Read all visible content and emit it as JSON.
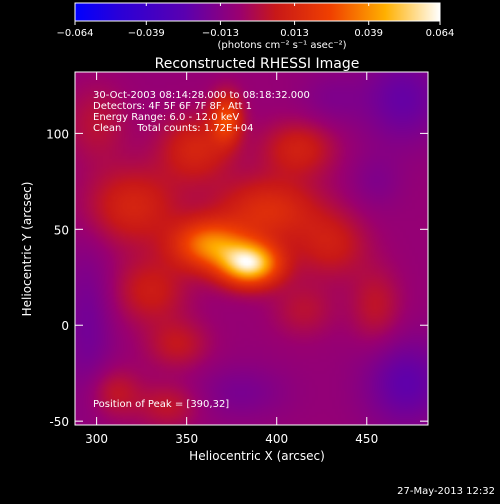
{
  "chart_data": {
    "type": "heatmap",
    "title": "Reconstructed RHESSI Image",
    "xlabel": "Heliocentric X (arcsec)",
    "ylabel": "Heliocentric Y (arcsec)",
    "xlim": [
      288,
      484
    ],
    "ylim": [
      -52,
      132
    ],
    "xticks": [
      300,
      350,
      400,
      450
    ],
    "yticks": [
      -50,
      0,
      50,
      100
    ],
    "colorbar": {
      "ticks": [
        -0.064,
        -0.039,
        -0.013,
        0.013,
        0.039,
        0.064
      ],
      "tick_labels": [
        "−0.064",
        "−0.039",
        "−0.013",
        "0.013",
        "0.039",
        "0.064"
      ],
      "unit_label": "(photons cm⁻² s⁻¹ asec⁻²)",
      "range": [
        -0.064,
        0.064
      ]
    },
    "info_lines": [
      "30-Oct-2003 08:14:28.000 to 08:18:32.000",
      "Detectors: 4F 5F 6F 7F 8F, Att 1",
      "Energy Range: 6.0 - 12.0 keV",
      "Clean     Total counts: 1.72E+04"
    ],
    "peak_label": "Position of Peak = [390,32]",
    "peak": [
      390,
      32
    ],
    "timestamp": "27-May-2013 12:32",
    "sources": [
      {
        "x": 385,
        "y": 32,
        "sx": 12,
        "sy": 8,
        "amp": 0.064
      },
      {
        "x": 362,
        "y": 42,
        "sx": 14,
        "sy": 9,
        "amp": 0.042
      },
      {
        "x": 395,
        "y": 60,
        "sx": 20,
        "sy": 12,
        "amp": 0.024
      },
      {
        "x": 320,
        "y": 62,
        "sx": 18,
        "sy": 14,
        "amp": 0.02
      },
      {
        "x": 372,
        "y": 108,
        "sx": 6,
        "sy": 9,
        "amp": 0.032
      },
      {
        "x": 355,
        "y": 92,
        "sx": 14,
        "sy": 12,
        "amp": 0.02
      },
      {
        "x": 412,
        "y": 92,
        "sx": 14,
        "sy": 10,
        "amp": 0.018
      },
      {
        "x": 330,
        "y": 18,
        "sx": 14,
        "sy": 12,
        "amp": 0.016
      },
      {
        "x": 345,
        "y": -10,
        "sx": 12,
        "sy": 9,
        "amp": 0.013
      },
      {
        "x": 310,
        "y": -35,
        "sx": 10,
        "sy": 9,
        "amp": 0.013
      },
      {
        "x": 340,
        "y": -42,
        "sx": 12,
        "sy": 8,
        "amp": 0.012
      },
      {
        "x": 430,
        "y": 42,
        "sx": 14,
        "sy": 12,
        "amp": 0.016
      },
      {
        "x": 415,
        "y": 8,
        "sx": 12,
        "sy": 10,
        "amp": 0.01
      },
      {
        "x": 455,
        "y": 10,
        "sx": 10,
        "sy": 14,
        "amp": 0.012
      },
      {
        "x": 300,
        "y": 105,
        "sx": 12,
        "sy": 14,
        "amp": 0.01
      },
      {
        "x": 455,
        "y": 75,
        "sx": 10,
        "sy": 10,
        "amp": -0.006
      },
      {
        "x": 472,
        "y": -30,
        "sx": 16,
        "sy": 16,
        "amp": -0.016
      },
      {
        "x": 470,
        "y": 118,
        "sx": 16,
        "sy": 16,
        "amp": -0.014
      },
      {
        "x": 295,
        "y": 0,
        "sx": 10,
        "sy": 30,
        "amp": -0.01
      },
      {
        "x": 380,
        "y": -35,
        "sx": 18,
        "sy": 10,
        "amp": -0.008
      },
      {
        "x": 430,
        "y": 118,
        "sx": 12,
        "sy": 10,
        "amp": -0.006
      }
    ],
    "background": -0.008
  }
}
